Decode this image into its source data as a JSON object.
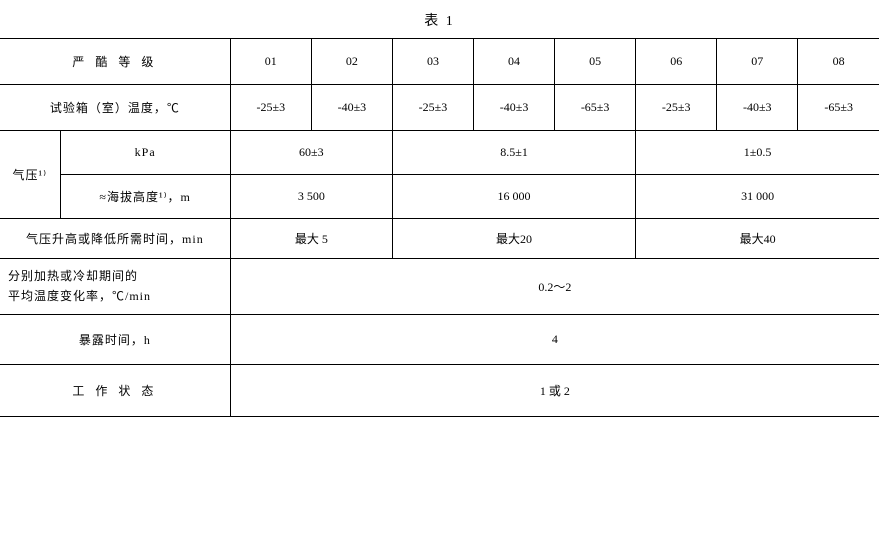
{
  "title": "表 1",
  "headers": {
    "severity": "严 酷 等 级",
    "levels": [
      "01",
      "02",
      "03",
      "04",
      "05",
      "06",
      "07",
      "08"
    ]
  },
  "rows": {
    "chamber_temp": {
      "label": "试验箱（室）温度，℃",
      "values": [
        "-25±3",
        "-40±3",
        "-25±3",
        "-40±3",
        "-65±3",
        "-25±3",
        "-40±3",
        "-65±3"
      ]
    },
    "pressure": {
      "group_label": "气压¹⁾",
      "kpa_label": "kPa",
      "kpa_values": [
        "60±3",
        "8.5±1",
        "1±0.5"
      ],
      "altitude_label": "≈海拔高度¹⁾，m",
      "altitude_values": [
        "3 500",
        "16 000",
        "31 000"
      ]
    },
    "pressure_time": {
      "label": "气压升高或降低所需时间，min",
      "values": [
        "最大 5",
        "最大20",
        "最大40"
      ]
    },
    "temp_rate": {
      "label_line1": "分别加热或冷却期间的",
      "label_line2": "平均温度变化率，℃/min",
      "value": "0.2～2"
    },
    "exposure_time": {
      "label": "暴露时间，h",
      "value": "4"
    },
    "operating_state": {
      "label": "工 作 状 态",
      "value": "1 或 2"
    }
  },
  "colors": {
    "border": "#000000",
    "background": "#ffffff",
    "text": "#000000"
  }
}
